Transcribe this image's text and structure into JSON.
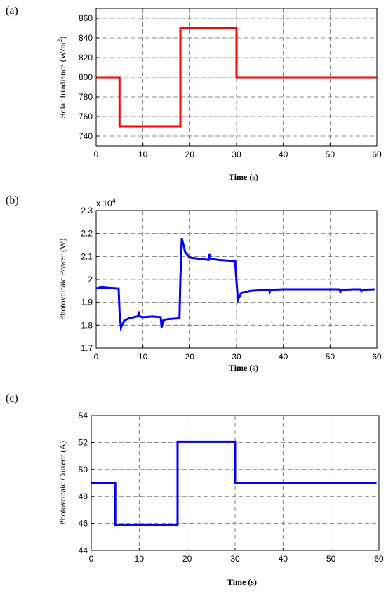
{
  "chart_data": [
    {
      "panel": "(a)",
      "type": "line",
      "xlabel": "Time (s)",
      "ylabel": "Solar Irradiance (W/m",
      "ylabel_sup": "2",
      "ylabel_end": ")",
      "xlim": [
        0,
        60
      ],
      "ylim": [
        730,
        870
      ],
      "xticks": [
        "0",
        "10",
        "20",
        "30",
        "40",
        "50",
        "60"
      ],
      "yticks": [
        "740",
        "760",
        "780",
        "800",
        "820",
        "840",
        "860"
      ],
      "grid": true,
      "color": "#ff0000",
      "series": [
        {
          "x": [
            0,
            5,
            5,
            18,
            18,
            30,
            30,
            60
          ],
          "y": [
            800,
            800,
            750,
            750,
            850,
            850,
            800,
            800
          ]
        }
      ]
    },
    {
      "panel": "(b)",
      "type": "line",
      "xlabel": "Time (s)",
      "ylabel": "Photovoltaic Power (W)",
      "multiplier": "x 10",
      "multiplier_exp": "4",
      "xlim": [
        0,
        60
      ],
      "ylim": [
        1.7,
        2.3
      ],
      "xticks": [
        "0",
        "10",
        "20",
        "30",
        "40",
        "50",
        "60"
      ],
      "yticks": [
        "1.7",
        "1.8",
        "1.9",
        "2",
        "2.1",
        "2.2",
        "2.3"
      ],
      "grid": true,
      "color": "#0000ff",
      "series": [
        {
          "x": [
            0,
            1,
            4.8,
            5,
            5.3,
            6,
            7,
            8,
            9,
            9.1,
            9.3,
            10,
            12,
            13.8,
            14,
            14.3,
            15,
            17.8,
            18,
            18.3,
            19,
            20,
            22,
            24,
            24.2,
            24.4,
            26,
            28,
            29.7,
            30,
            30.3,
            31,
            33,
            37,
            37.1,
            37.3,
            40,
            45,
            50,
            52,
            52.2,
            52.5,
            55,
            56.5,
            56.7,
            57,
            59.5
          ],
          "y": [
            1.96,
            1.965,
            1.96,
            1.86,
            1.79,
            1.82,
            1.83,
            1.835,
            1.84,
            1.86,
            1.838,
            1.835,
            1.838,
            1.835,
            1.79,
            1.82,
            1.826,
            1.83,
            2.0,
            2.18,
            2.12,
            2.095,
            2.09,
            2.085,
            2.11,
            2.09,
            2.085,
            2.082,
            2.08,
            1.99,
            1.91,
            1.94,
            1.95,
            1.955,
            1.945,
            1.955,
            1.957,
            1.957,
            1.957,
            1.957,
            1.945,
            1.955,
            1.957,
            1.957,
            1.948,
            1.955,
            1.957
          ]
        }
      ]
    },
    {
      "panel": "(c)",
      "type": "line",
      "xlabel": "Time (s)",
      "ylabel": "Photovoltaic Current (A)",
      "xlim": [
        0,
        60
      ],
      "ylim": [
        44,
        54
      ],
      "xticks": [
        "0",
        "10",
        "20",
        "30",
        "40",
        "50",
        "60"
      ],
      "yticks": [
        "44",
        "46",
        "48",
        "50",
        "52",
        "54"
      ],
      "grid": true,
      "color": "#0000ff",
      "series": [
        {
          "x": [
            0,
            5,
            5,
            18,
            18,
            30,
            30,
            59.5
          ],
          "y": [
            49,
            49,
            45.9,
            45.9,
            52.05,
            52.05,
            48.98,
            48.98
          ]
        }
      ]
    }
  ]
}
